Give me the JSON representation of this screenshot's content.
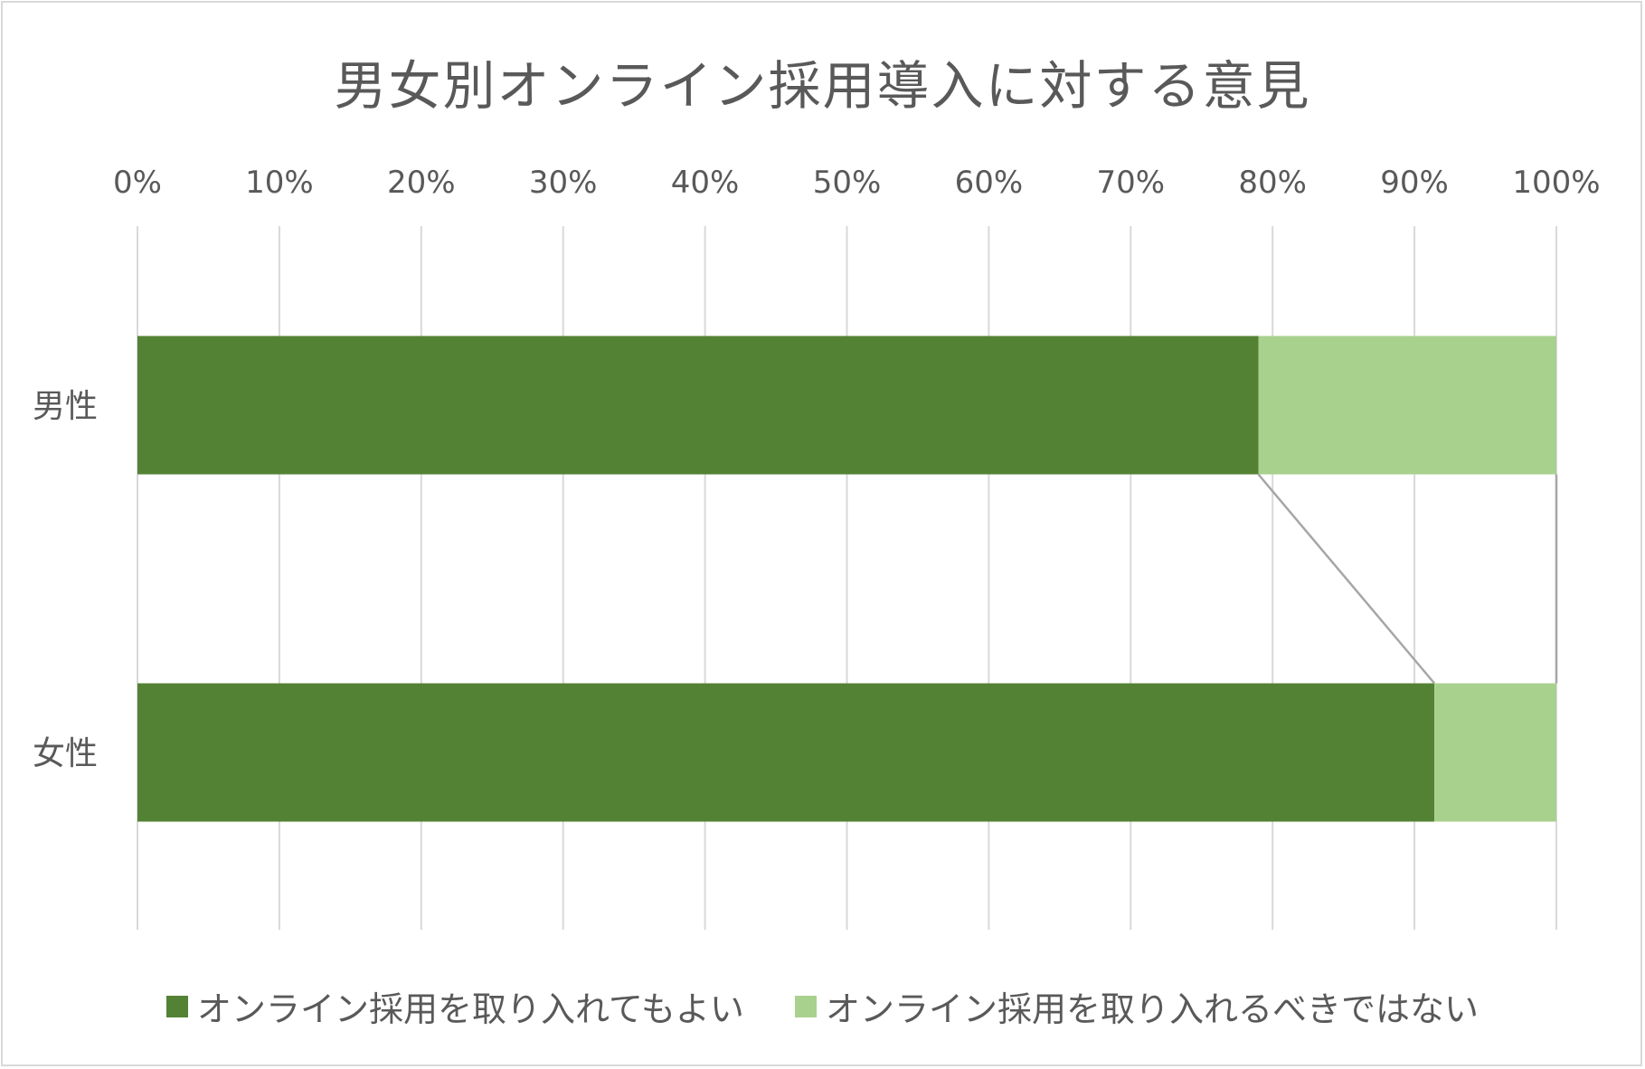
{
  "chart_data": {
    "type": "bar",
    "orientation": "horizontal",
    "stacked": "percent",
    "title": "男女別オンライン採用導入に対する意見",
    "categories": [
      "男性",
      "女性"
    ],
    "series": [
      {
        "name": "オンライン採用を取り入れてもよい",
        "values": [
          79,
          91.4
        ],
        "color": "#548235"
      },
      {
        "name": "オンライン採用を取り入れるべきではない",
        "values": [
          21,
          8.6
        ],
        "color": "#a9d18e"
      }
    ],
    "xlim": [
      0,
      100
    ],
    "xticks": [
      "0%",
      "10%",
      "20%",
      "30%",
      "40%",
      "50%",
      "60%",
      "70%",
      "80%",
      "90%",
      "100%"
    ],
    "grid": true,
    "series_lines": true,
    "legend": "bottom"
  }
}
